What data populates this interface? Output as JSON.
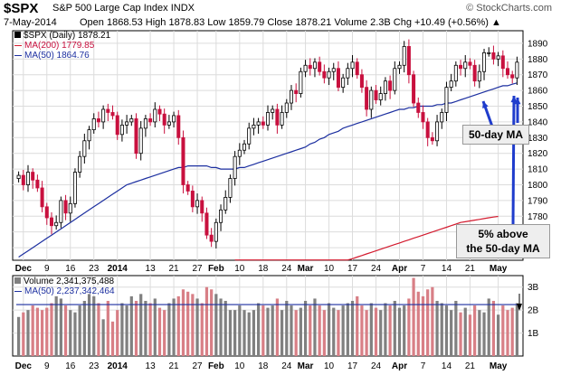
{
  "header": {
    "ticker": "$SPX",
    "index_name": "S&P 500 Large Cap Index",
    "exchange": "INDX",
    "brand": "© StockCharts.com",
    "date": "7-May-2014",
    "quote": "Open 1868.53  High 1878.83  Low 1859.79  Close 1878.21  Volume 2.3B  Chg +10.49 (+0.56%) ▲"
  },
  "legend": {
    "price": "$SPX (Daily) 1878.21",
    "ma200": "MA(200) 1779.85",
    "ma50": "MA(50) 1864.76",
    "volume": "Volume 2,341,375,488",
    "volma": "MA(50) 2,237,342,464"
  },
  "annotations": {
    "ma_label": "50-day MA",
    "above_line1": "5% above",
    "above_line2": "the 50-day MA"
  },
  "colors": {
    "up": "#000000",
    "down": "#c8103e",
    "ma50": "#1c2fa0",
    "ma200": "#d31a2e",
    "vol_up": "#808080",
    "vol_down": "#d87f86",
    "arrow": "#1f3ccc"
  },
  "chart_data": {
    "type": "candlestick",
    "price_ticks": [
      1760,
      1770,
      1780,
      1790,
      1800,
      1810,
      1820,
      1830,
      1840,
      1850,
      1860,
      1870,
      1880,
      1890
    ],
    "ylim": [
      1752,
      1898
    ],
    "volume_ticks": [
      "1B",
      "2B",
      "3B"
    ],
    "volume_ylim": [
      0,
      3500000000
    ],
    "x_labels": [
      {
        "i": 1,
        "t": "Dec"
      },
      {
        "i": 6,
        "t": "9"
      },
      {
        "i": 11,
        "t": "16"
      },
      {
        "i": 16,
        "t": "23"
      },
      {
        "i": 21,
        "t": "2014"
      },
      {
        "i": 28,
        "t": "13"
      },
      {
        "i": 33,
        "t": "21"
      },
      {
        "i": 38,
        "t": "27"
      },
      {
        "i": 42,
        "t": "Feb"
      },
      {
        "i": 47,
        "t": "10"
      },
      {
        "i": 52,
        "t": "18"
      },
      {
        "i": 57,
        "t": "24"
      },
      {
        "i": 61,
        "t": "Mar"
      },
      {
        "i": 66,
        "t": "10"
      },
      {
        "i": 71,
        "t": "17"
      },
      {
        "i": 76,
        "t": "24"
      },
      {
        "i": 81,
        "t": "Apr"
      },
      {
        "i": 86,
        "t": "7"
      },
      {
        "i": 91,
        "t": "14"
      },
      {
        "i": 96,
        "t": "21"
      },
      {
        "i": 102,
        "t": "May"
      }
    ],
    "closes": [
      1806,
      1800,
      1808,
      1803,
      1798,
      1786,
      1779,
      1774,
      1776,
      1790,
      1782,
      1788,
      1808,
      1818,
      1828,
      1835,
      1842,
      1840,
      1848,
      1846,
      1844,
      1832,
      1838,
      1840,
      1842,
      1820,
      1836,
      1842,
      1840,
      1848,
      1845,
      1838,
      1840,
      1844,
      1830,
      1800,
      1796,
      1786,
      1790,
      1782,
      1768,
      1764,
      1776,
      1784,
      1792,
      1804,
      1818,
      1822,
      1826,
      1836,
      1838,
      1840,
      1838,
      1846,
      1848,
      1838,
      1846,
      1852,
      1860,
      1858,
      1872,
      1876,
      1874,
      1878,
      1872,
      1868,
      1872,
      1874,
      1862,
      1868,
      1874,
      1878,
      1870,
      1862,
      1848,
      1860,
      1854,
      1858,
      1866,
      1860,
      1874,
      1876,
      1888,
      1870,
      1852,
      1846,
      1840,
      1830,
      1828,
      1840,
      1846,
      1862,
      1866,
      1876,
      1874,
      1878,
      1876,
      1866,
      1872,
      1884,
      1884,
      1880,
      1882,
      1874,
      1870,
      1868,
      1878
    ],
    "volumes": [
      1.7,
      1.9,
      2.0,
      2.2,
      2.1,
      2.0,
      2.1,
      2.3,
      2.6,
      2.5,
      2.2,
      2.0,
      1.9,
      2.2,
      2.4,
      2.7,
      2.6,
      2.3,
      1.6,
      2.4,
      1.5,
      2.0,
      2.3,
      2.2,
      2.6,
      2.4,
      2.7,
      2.4,
      2.3,
      2.5,
      2.1,
      2.0,
      2.3,
      2.5,
      2.6,
      2.9,
      2.8,
      2.7,
      2.5,
      2.3,
      3.0,
      2.9,
      2.7,
      2.5,
      2.4,
      2.0,
      2.0,
      2.2,
      2.0,
      1.9,
      2.0,
      2.3,
      2.2,
      2.1,
      2.2,
      2.5,
      2.0,
      2.4,
      2.2,
      2.0,
      2.1,
      2.4,
      2.2,
      2.5,
      2.2,
      2.0,
      2.3,
      2.1,
      2.0,
      2.2,
      2.3,
      2.4,
      2.6,
      2.2,
      2.0,
      2.3,
      2.1,
      2.0,
      2.3,
      2.2,
      2.4,
      2.1,
      2.2,
      2.5,
      3.4,
      2.8,
      2.6,
      2.9,
      3.0,
      2.4,
      2.3,
      2.2,
      2.0,
      2.4,
      1.9,
      2.1,
      1.8,
      2.2,
      2.0,
      1.9,
      2.5,
      2.4,
      1.8,
      2.2,
      2.0,
      2.1,
      2.3
    ],
    "ma50": [
      1754,
      1756,
      1758,
      1760,
      1762,
      1764,
      1766,
      1768,
      1770,
      1772,
      1774,
      1776,
      1778,
      1780,
      1782,
      1784,
      1786,
      1788,
      1790,
      1792,
      1794,
      1796,
      1798,
      1800,
      1801,
      1802,
      1803,
      1804,
      1805,
      1806,
      1807,
      1808,
      1809,
      1810,
      1811,
      1811,
      1812,
      1812,
      1812,
      1812,
      1812,
      1811,
      1811,
      1810,
      1810,
      1810,
      1810,
      1811,
      1811,
      1812,
      1813,
      1814,
      1815,
      1816,
      1817,
      1818,
      1819,
      1820,
      1821,
      1822,
      1823,
      1824,
      1826,
      1827,
      1829,
      1830,
      1832,
      1833,
      1834,
      1836,
      1837,
      1838,
      1839,
      1840,
      1841,
      1842,
      1843,
      1844,
      1845,
      1846,
      1847,
      1848,
      1848,
      1849,
      1849,
      1850,
      1850,
      1850,
      1850,
      1851,
      1851,
      1852,
      1852,
      1853,
      1854,
      1855,
      1856,
      1857,
      1858,
      1859,
      1860,
      1861,
      1862,
      1863,
      1863,
      1864,
      1864.76
    ],
    "ma200": [
      null,
      null,
      null,
      null,
      null,
      null,
      null,
      null,
      null,
      null,
      null,
      null,
      null,
      null,
      null,
      null,
      null,
      null,
      null,
      null,
      null,
      null,
      null,
      null,
      null,
      null,
      null,
      null,
      null,
      null,
      null,
      null,
      null,
      null,
      null,
      null,
      null,
      null,
      null,
      null,
      null,
      null,
      null,
      null,
      null,
      null,
      1728,
      1729,
      1730,
      1731,
      1732,
      1733,
      1734,
      1735,
      1736,
      1737,
      1738,
      1739,
      1740,
      1741,
      1742,
      1743,
      1744,
      1745,
      1746,
      1747,
      1748,
      1749,
      1750,
      1751,
      1752,
      1753,
      1754,
      1755,
      1756,
      1757,
      1758,
      1759,
      1760,
      1761,
      1762,
      1763,
      1764,
      1765,
      1766,
      1767,
      1768,
      1769,
      1770,
      1771,
      1772,
      1773,
      1774,
      1775,
      1776,
      1776.5,
      1777,
      1777.5,
      1778,
      1778.5,
      1779,
      1779.5,
      1779.85
    ],
    "volume_ma50": 2.24
  }
}
